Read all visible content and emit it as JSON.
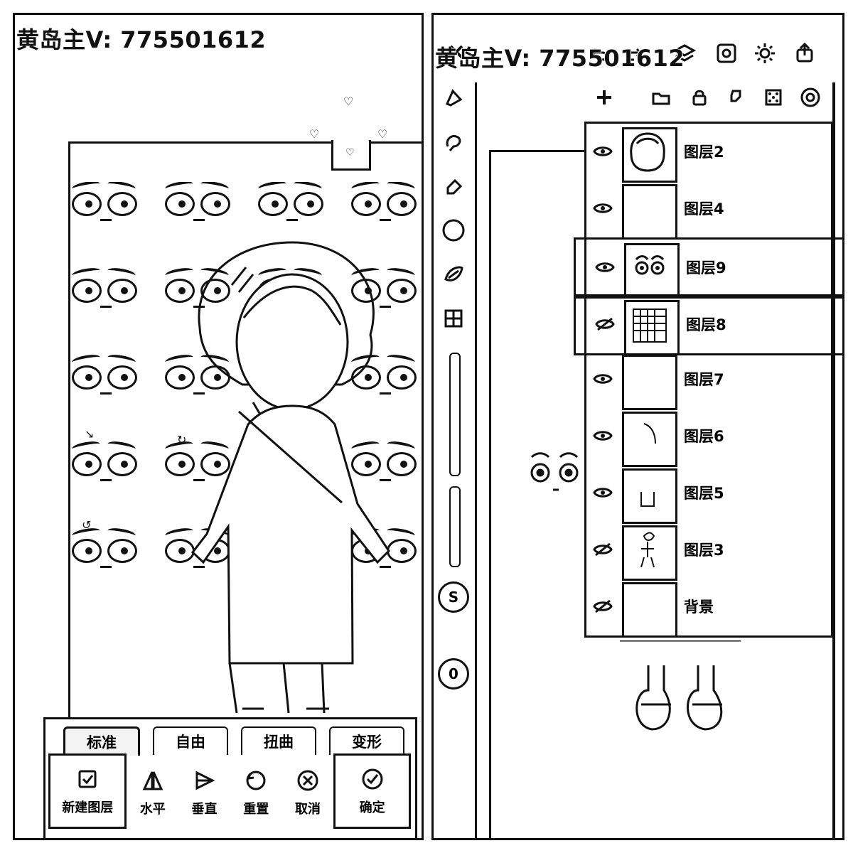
{
  "watermark": {
    "text": "黄岛主V: 775501612"
  },
  "left_panel": {
    "transform_modes": [
      {
        "label": "标准",
        "active": true
      },
      {
        "label": "自由",
        "active": false
      },
      {
        "label": "扭曲",
        "active": false
      },
      {
        "label": "变形",
        "active": false
      }
    ],
    "actions": [
      {
        "label": "新建图层",
        "icon": "new-layer-icon"
      },
      {
        "label": "水平",
        "icon": "flip-horizontal-icon"
      },
      {
        "label": "垂直",
        "icon": "flip-vertical-icon"
      },
      {
        "label": "重置",
        "icon": "reset-icon"
      },
      {
        "label": "取消",
        "icon": "cancel-icon"
      },
      {
        "label": "确定",
        "icon": "confirm-icon"
      }
    ]
  },
  "right_panel": {
    "top_toolbar": [
      "close-icon",
      "undo-icon",
      "redo-icon",
      "layers-icon",
      "gallery-icon",
      "settings-icon",
      "export-icon"
    ],
    "tools": [
      "brush-icon",
      "smudge-icon",
      "eraser-icon",
      "color-circle-icon",
      "leaf-brush-icon",
      "grid-icon"
    ],
    "layer_actions": [
      "add-layer-icon",
      "folder-icon",
      "lock-icon",
      "merge-icon",
      "texture-icon",
      "target-icon"
    ],
    "side_badges": [
      "S",
      "0"
    ],
    "layers": [
      {
        "label": "图层2",
        "visible": true,
        "selected": false,
        "thumb": "face-sketch"
      },
      {
        "label": "图层4",
        "visible": true,
        "selected": false,
        "thumb": "light-sketch"
      },
      {
        "label": "图层9",
        "visible": true,
        "selected": true,
        "thumb": "sad-face"
      },
      {
        "label": "图层8",
        "visible": false,
        "selected": true,
        "thumb": "grid-pattern"
      },
      {
        "label": "图层7",
        "visible": true,
        "selected": false,
        "thumb": "blank"
      },
      {
        "label": "图层6",
        "visible": true,
        "selected": false,
        "thumb": "line"
      },
      {
        "label": "图层5",
        "visible": true,
        "selected": false,
        "thumb": "small-outline"
      },
      {
        "label": "图层3",
        "visible": false,
        "selected": false,
        "thumb": "character"
      },
      {
        "label": "背景",
        "visible": false,
        "selected": false,
        "thumb": "blank"
      }
    ]
  }
}
